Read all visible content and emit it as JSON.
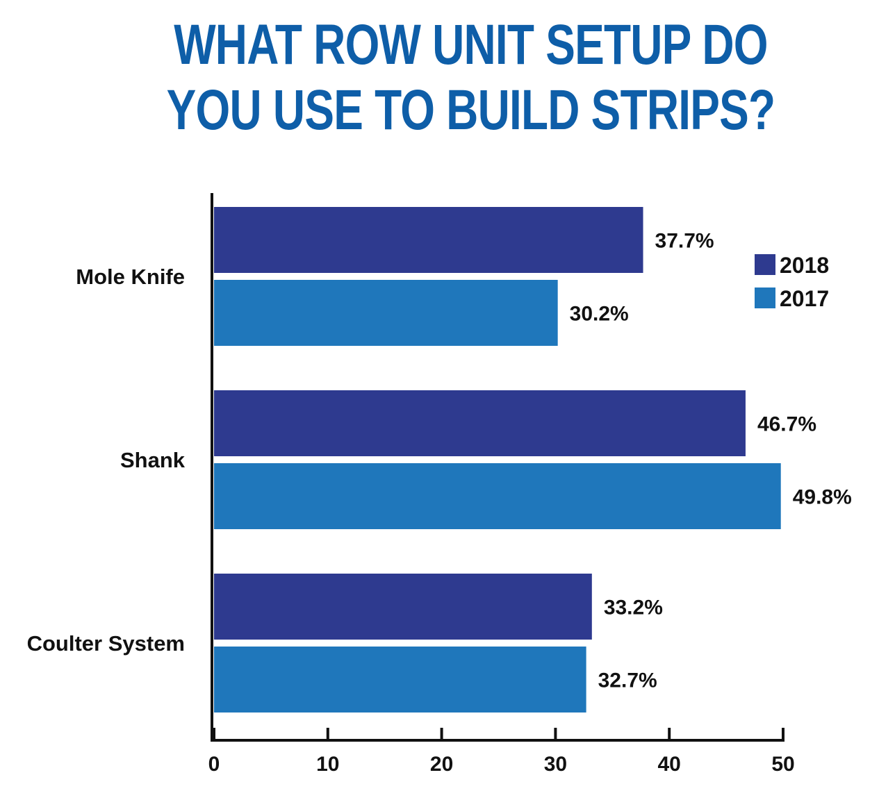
{
  "chart_data": {
    "type": "bar",
    "orientation": "horizontal",
    "title": "WHAT ROW UNIT SETUP DO YOU USE TO BUILD STRIPS?",
    "categories": [
      "Mole Knife",
      "Shank",
      "Coulter System"
    ],
    "series": [
      {
        "name": "2018",
        "values": [
          37.7,
          46.7,
          33.2
        ],
        "color": "#2e3a8f"
      },
      {
        "name": "2017",
        "values": [
          30.2,
          49.8,
          32.7
        ],
        "color": "#1f77bb"
      }
    ],
    "value_labels": [
      [
        "37.7%",
        "46.7%",
        "33.2%"
      ],
      [
        "30.2%",
        "49.8%",
        "32.7%"
      ]
    ],
    "xlim": [
      0,
      50
    ],
    "xticks": [
      0,
      10,
      20,
      30,
      40,
      50
    ],
    "xtick_labels": [
      "0",
      "10",
      "20",
      "30",
      "40",
      "50"
    ],
    "xlabel": "",
    "ylabel": "",
    "grid": false,
    "legend": {
      "placement": "top-right",
      "entries": [
        "2018",
        "2017"
      ]
    }
  }
}
